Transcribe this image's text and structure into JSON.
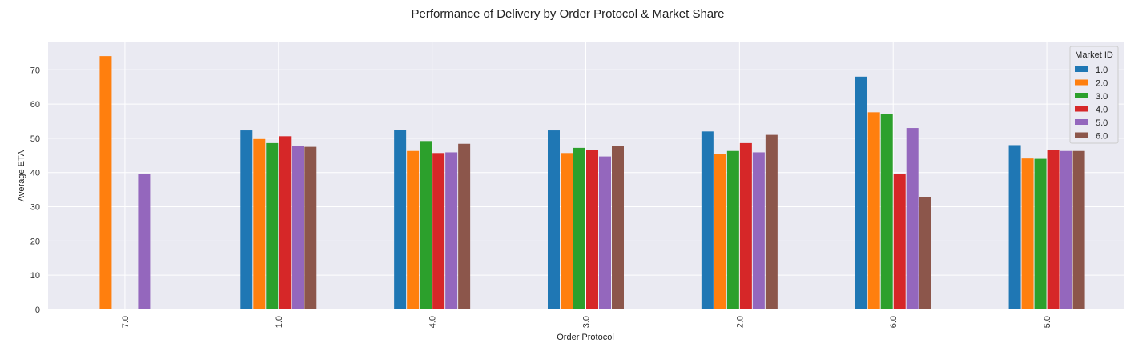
{
  "chart_data": {
    "type": "bar",
    "title": "Performance of Delivery by Order Protocol & Market Share",
    "xlabel": "Order Protocol",
    "ylabel": "Average ETA",
    "categories": [
      "7.0",
      "1.0",
      "4.0",
      "3.0",
      "2.0",
      "6.0",
      "5.0"
    ],
    "ylim": [
      0,
      78
    ],
    "yticks": [
      0,
      10,
      20,
      30,
      40,
      50,
      60,
      70
    ],
    "grid": true,
    "legend": {
      "title": "Market ID",
      "position": "top-right"
    },
    "series": [
      {
        "name": "1.0",
        "color": "#1f77b4",
        "values": [
          null,
          52.3,
          52.5,
          52.3,
          52.0,
          68.0,
          48.0
        ]
      },
      {
        "name": "2.0",
        "color": "#ff7f0e",
        "values": [
          74.0,
          49.8,
          46.3,
          45.7,
          45.4,
          57.6,
          44.1
        ]
      },
      {
        "name": "3.0",
        "color": "#2ca02c",
        "values": [
          null,
          48.6,
          49.2,
          47.2,
          46.3,
          57.0,
          44.0
        ]
      },
      {
        "name": "4.0",
        "color": "#d62728",
        "values": [
          null,
          50.6,
          45.7,
          46.6,
          48.6,
          39.7,
          46.6
        ]
      },
      {
        "name": "5.0",
        "color": "#9467bd",
        "values": [
          39.5,
          47.7,
          45.9,
          44.7,
          45.9,
          53.0,
          46.3
        ]
      },
      {
        "name": "6.0",
        "color": "#8c564b",
        "values": [
          null,
          47.5,
          48.4,
          47.8,
          51.0,
          32.8,
          46.3
        ]
      }
    ]
  }
}
